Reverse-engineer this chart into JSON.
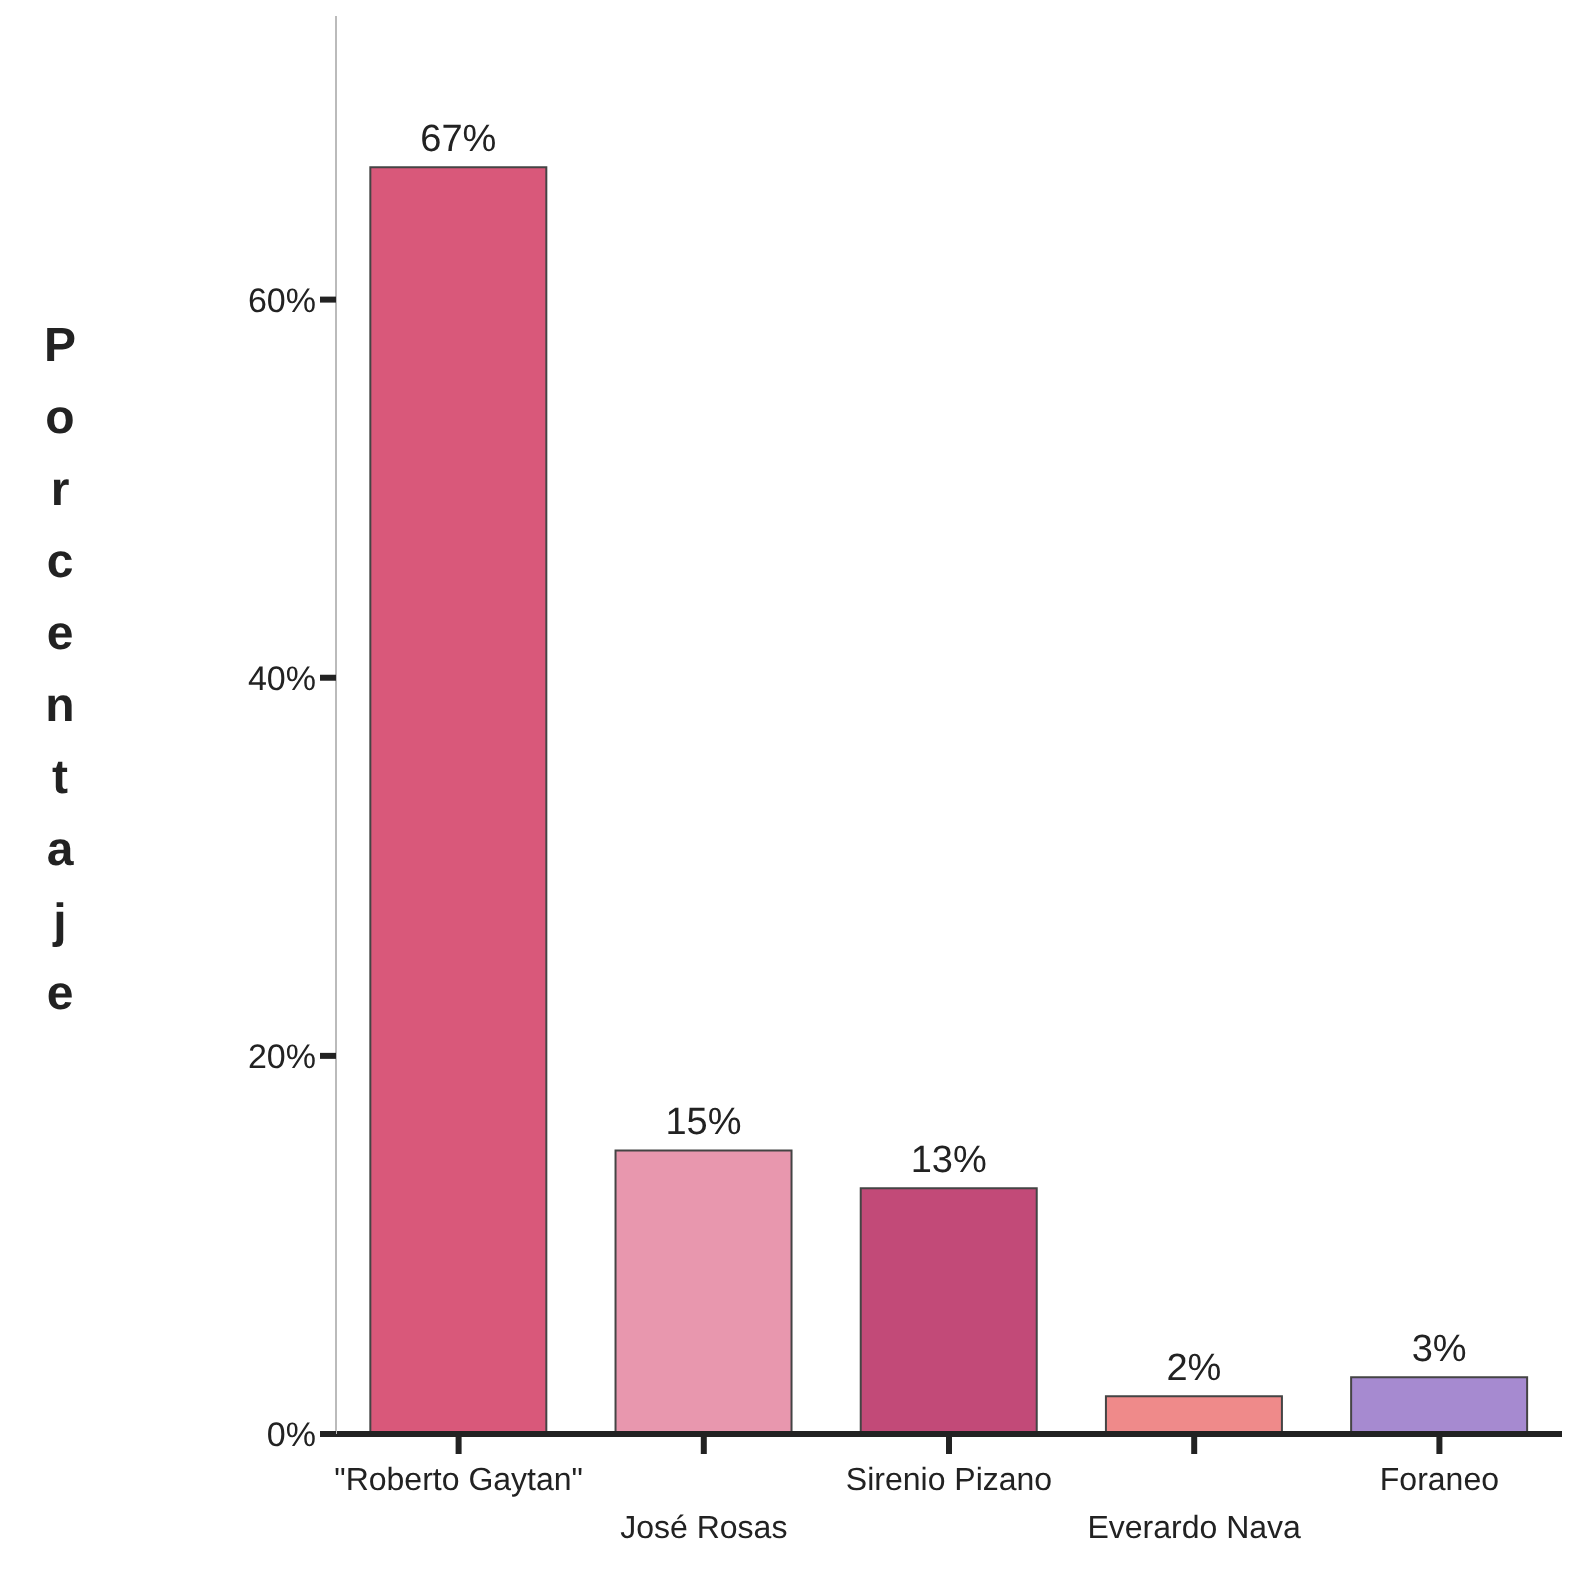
{
  "chart_data": {
    "type": "bar",
    "ylabel": "Porcentaje",
    "categories": [
      "\"Roberto Gaytan\"",
      "José Rosas",
      "Sirenio Pizano",
      "Everardo Nava",
      "Foraneo"
    ],
    "values": [
      67,
      15,
      13,
      2,
      3
    ],
    "value_labels": [
      "67%",
      "15%",
      "13%",
      "2%",
      "3%"
    ],
    "colors": [
      "#d9587a",
      "#e897ae",
      "#c24a78",
      "#ef8a8a",
      "#a68ad0"
    ],
    "ylim": [
      0,
      75
    ],
    "yticks": [
      {
        "value": 0,
        "label": "0%"
      },
      {
        "value": 20,
        "label": "20%"
      },
      {
        "value": 40,
        "label": "40%"
      },
      {
        "value": 60,
        "label": "60%"
      }
    ],
    "grid": false,
    "legend": false
  }
}
